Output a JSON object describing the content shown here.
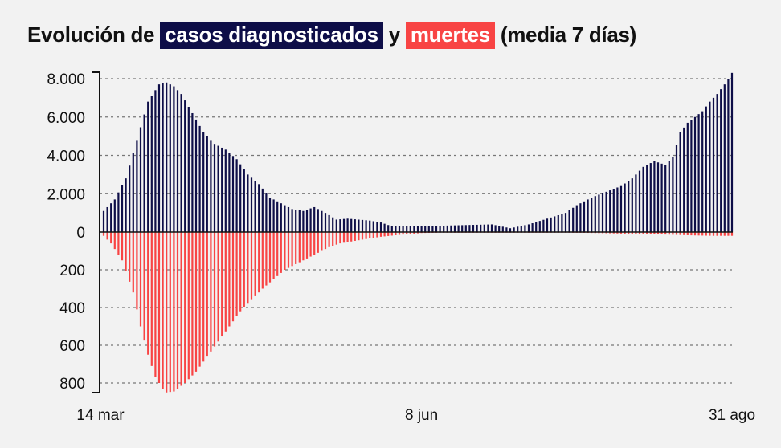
{
  "title": {
    "prefix": "Evolución de",
    "cases_highlight": "casos diagnosticados",
    "joiner": "y",
    "deaths_highlight": "muertes",
    "suffix": "(media 7 días)"
  },
  "colors": {
    "cases": "#0e0e48",
    "deaths": "#f84444",
    "grid": "#777777",
    "axis": "#111111"
  },
  "chart_data": {
    "type": "bar",
    "grid": true,
    "x_axis": {
      "tick_labels": [
        "14 mar",
        "8 jun",
        "31 ago"
      ],
      "tick_days": [
        0,
        86,
        170
      ],
      "n_days": 171
    },
    "upper_axis": {
      "name": "casos diagnosticados",
      "ticks": [
        0,
        2000,
        4000,
        6000,
        8000
      ],
      "tick_labels": [
        "0",
        "2.000",
        "4.000",
        "6.000",
        "8.000"
      ],
      "ylim": [
        0,
        8000
      ]
    },
    "lower_axis": {
      "name": "muertes",
      "ticks": [
        0,
        200,
        400,
        600,
        800
      ],
      "tick_labels": [
        "0",
        "200",
        "400",
        "600",
        "800"
      ],
      "ylim": [
        0,
        800
      ],
      "direction": "down"
    },
    "series": [
      {
        "name": "casos diagnosticados",
        "anchors": [
          [
            0,
            1100
          ],
          [
            3,
            1700
          ],
          [
            6,
            2800
          ],
          [
            9,
            4800
          ],
          [
            12,
            6800
          ],
          [
            15,
            7700
          ],
          [
            17,
            7800
          ],
          [
            19,
            7600
          ],
          [
            21,
            7200
          ],
          [
            24,
            6200
          ],
          [
            27,
            5200
          ],
          [
            30,
            4600
          ],
          [
            33,
            4300
          ],
          [
            36,
            3800
          ],
          [
            39,
            3000
          ],
          [
            42,
            2500
          ],
          [
            45,
            1800
          ],
          [
            48,
            1500
          ],
          [
            51,
            1200
          ],
          [
            54,
            1100
          ],
          [
            57,
            1300
          ],
          [
            60,
            1000
          ],
          [
            63,
            650
          ],
          [
            66,
            700
          ],
          [
            69,
            650
          ],
          [
            72,
            600
          ],
          [
            75,
            500
          ],
          [
            78,
            300
          ],
          [
            85,
            300
          ],
          [
            95,
            350
          ],
          [
            105,
            400
          ],
          [
            110,
            200
          ],
          [
            115,
            400
          ],
          [
            120,
            700
          ],
          [
            125,
            1000
          ],
          [
            128,
            1400
          ],
          [
            132,
            1800
          ],
          [
            136,
            2100
          ],
          [
            140,
            2400
          ],
          [
            143,
            2800
          ],
          [
            146,
            3400
          ],
          [
            149,
            3700
          ],
          [
            152,
            3500
          ],
          [
            154,
            3900
          ],
          [
            156,
            5200
          ],
          [
            158,
            5700
          ],
          [
            160,
            6000
          ],
          [
            162,
            6300
          ],
          [
            164,
            6800
          ],
          [
            166,
            7200
          ],
          [
            168,
            7700
          ],
          [
            170,
            8300
          ]
        ]
      },
      {
        "name": "muertes",
        "anchors": [
          [
            0,
            20
          ],
          [
            2,
            60
          ],
          [
            5,
            150
          ],
          [
            8,
            320
          ],
          [
            10,
            500
          ],
          [
            12,
            650
          ],
          [
            14,
            770
          ],
          [
            16,
            830
          ],
          [
            17,
            850
          ],
          [
            19,
            845
          ],
          [
            22,
            800
          ],
          [
            25,
            740
          ],
          [
            28,
            660
          ],
          [
            31,
            580
          ],
          [
            34,
            500
          ],
          [
            37,
            420
          ],
          [
            40,
            360
          ],
          [
            43,
            300
          ],
          [
            46,
            250
          ],
          [
            49,
            200
          ],
          [
            52,
            170
          ],
          [
            55,
            140
          ],
          [
            58,
            110
          ],
          [
            61,
            80
          ],
          [
            64,
            60
          ],
          [
            67,
            50
          ],
          [
            70,
            40
          ],
          [
            75,
            25
          ],
          [
            80,
            15
          ],
          [
            86,
            5
          ],
          [
            95,
            2
          ],
          [
            110,
            2
          ],
          [
            130,
            4
          ],
          [
            140,
            8
          ],
          [
            150,
            12
          ],
          [
            160,
            18
          ],
          [
            165,
            20
          ],
          [
            170,
            20
          ]
        ]
      }
    ]
  }
}
